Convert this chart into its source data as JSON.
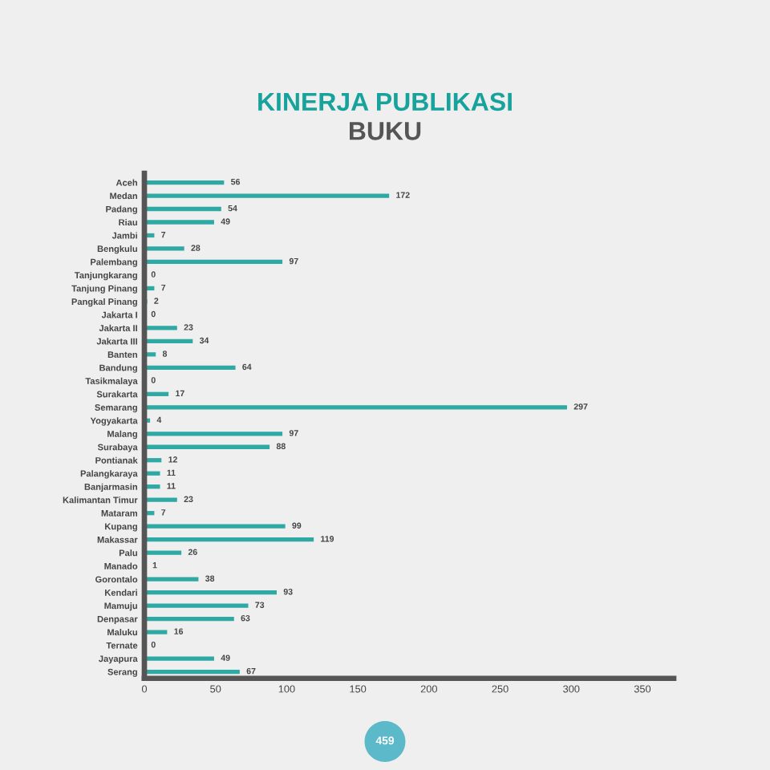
{
  "chart_data": {
    "type": "bar",
    "orientation": "horizontal",
    "title": "KINERJA PUBLIKASI",
    "subtitle": "BUKU",
    "categories": [
      "Aceh",
      "Medan",
      "Padang",
      "Riau",
      "Jambi",
      "Bengkulu",
      "Palembang",
      "Tanjungkarang",
      "Tanjung Pinang",
      "Pangkal Pinang",
      "Jakarta I",
      "Jakarta II",
      "Jakarta III",
      "Banten",
      "Bandung",
      "Tasikmalaya",
      "Surakarta",
      "Semarang",
      "Yogyakarta",
      "Malang",
      "Surabaya",
      "Pontianak",
      "Palangkaraya",
      "Banjarmasin",
      "Kalimantan Timur",
      "Mataram",
      "Kupang",
      "Makassar",
      "Palu",
      "Manado",
      "Gorontalo",
      "Kendari",
      "Mamuju",
      "Denpasar",
      "Maluku",
      "Ternate",
      "Jayapura",
      "Serang"
    ],
    "values": [
      56,
      172,
      54,
      49,
      7,
      28,
      97,
      0,
      7,
      2,
      0,
      23,
      34,
      8,
      64,
      0,
      17,
      297,
      4,
      97,
      88,
      12,
      11,
      11,
      23,
      7,
      99,
      119,
      26,
      1,
      38,
      93,
      73,
      63,
      16,
      0,
      49,
      67
    ],
    "color": "#2fa9a4",
    "xlim": [
      0,
      372
    ],
    "xticks": [
      0,
      50,
      100,
      150,
      200,
      250,
      300,
      350
    ],
    "data_labels": true,
    "grid": false,
    "legend": false,
    "annotations": [
      "459"
    ]
  }
}
